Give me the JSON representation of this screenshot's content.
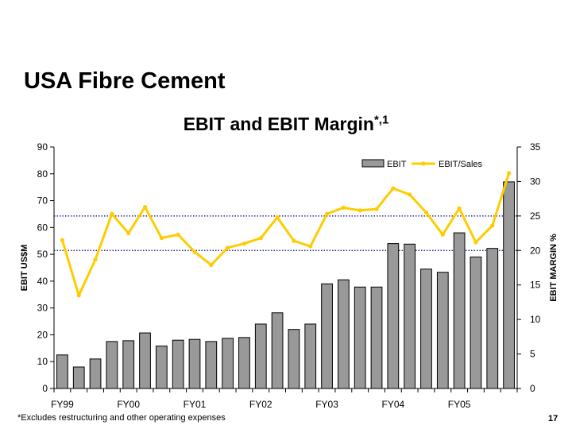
{
  "slide_title": "USA Fibre Cement",
  "footnote": "*Excludes restructuring and other operating expenses",
  "page_number": "17",
  "colors": {
    "bar_fill": "#999999",
    "line": "#FFCC00",
    "dotted_ref": "#000080"
  },
  "chart_data": {
    "type": "bar",
    "title": "EBIT and EBIT Margin",
    "title_superscript": "*,1",
    "ylabel": "EBIT US$M",
    "y2label": "EBIT MARGIN %",
    "ylim": [
      0,
      90
    ],
    "y2lim": [
      0,
      35
    ],
    "yticks": [
      "0",
      "10",
      "20",
      "30",
      "40",
      "50",
      "60",
      "70",
      "80",
      "90"
    ],
    "y2ticks": [
      "0",
      "5",
      "10",
      "15",
      "20",
      "25",
      "30",
      "35"
    ],
    "category_labels": [
      {
        "index": 0,
        "label": "FY99"
      },
      {
        "index": 4,
        "label": "FY00"
      },
      {
        "index": 8,
        "label": "FY01"
      },
      {
        "index": 12,
        "label": "FY02"
      },
      {
        "index": 16,
        "label": "FY03"
      },
      {
        "index": 20,
        "label": "FY04"
      },
      {
        "index": 24,
        "label": "FY05"
      }
    ],
    "legend_position": "top-right",
    "series": [
      {
        "name": "EBIT",
        "type": "bar",
        "axis": "left",
        "values": [
          12.5,
          8,
          11,
          17.5,
          17.8,
          20.7,
          15.8,
          18,
          18.3,
          17.5,
          18.7,
          19,
          24,
          28.2,
          22,
          24,
          39,
          40.5,
          37.8,
          37.8,
          54,
          53.8,
          44.5,
          43.3,
          58,
          49,
          52.2,
          77
        ]
      },
      {
        "name": "EBIT/Sales",
        "type": "line",
        "axis": "right",
        "values": [
          21.5,
          13.5,
          18.7,
          25.3,
          22.5,
          26.3,
          21.8,
          22.3,
          19.8,
          17.9,
          20.4,
          21,
          21.8,
          24.8,
          21.4,
          20.6,
          25.3,
          26.2,
          25.8,
          26,
          29,
          28.1,
          25.5,
          22.3,
          26.1,
          21.2,
          23.6,
          31.2
        ]
      }
    ],
    "reference_lines": [
      {
        "axis": "right",
        "value": 25
      },
      {
        "axis": "right",
        "value": 20
      }
    ]
  }
}
